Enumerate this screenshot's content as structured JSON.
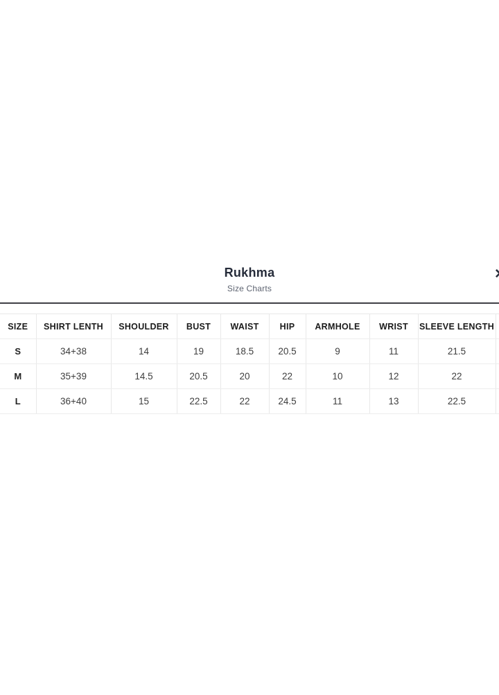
{
  "modal": {
    "title": "Rukhma",
    "subtitle": "Size Charts",
    "close_icon": "✕"
  },
  "size_chart": {
    "columns": [
      "SIZE",
      "SHIRT LENTH",
      "SHOULDER",
      "BUST",
      "WAIST",
      "HIP",
      "ARMHOLE",
      "WRIST",
      "SLEEVE LENGTH"
    ],
    "rows": [
      {
        "size": "S",
        "values": [
          "34+38",
          "14",
          "19",
          "18.5",
          "20.5",
          "9",
          "11",
          "21.5"
        ]
      },
      {
        "size": "M",
        "values": [
          "35+39",
          "14.5",
          "20.5",
          "20",
          "22",
          "10",
          "12",
          "22"
        ]
      },
      {
        "size": "L",
        "values": [
          "36+40",
          "15",
          "22.5",
          "22",
          "24.5",
          "11",
          "13",
          "22.5"
        ]
      }
    ]
  },
  "colors": {
    "background": "#ffffff",
    "title_text": "#262c3a",
    "subtitle_text": "#5d6370",
    "header_text": "#1b1b1b",
    "cell_text": "#3d3d3d",
    "divider": "#3f3f45",
    "table_border": "#e8e8e8"
  }
}
